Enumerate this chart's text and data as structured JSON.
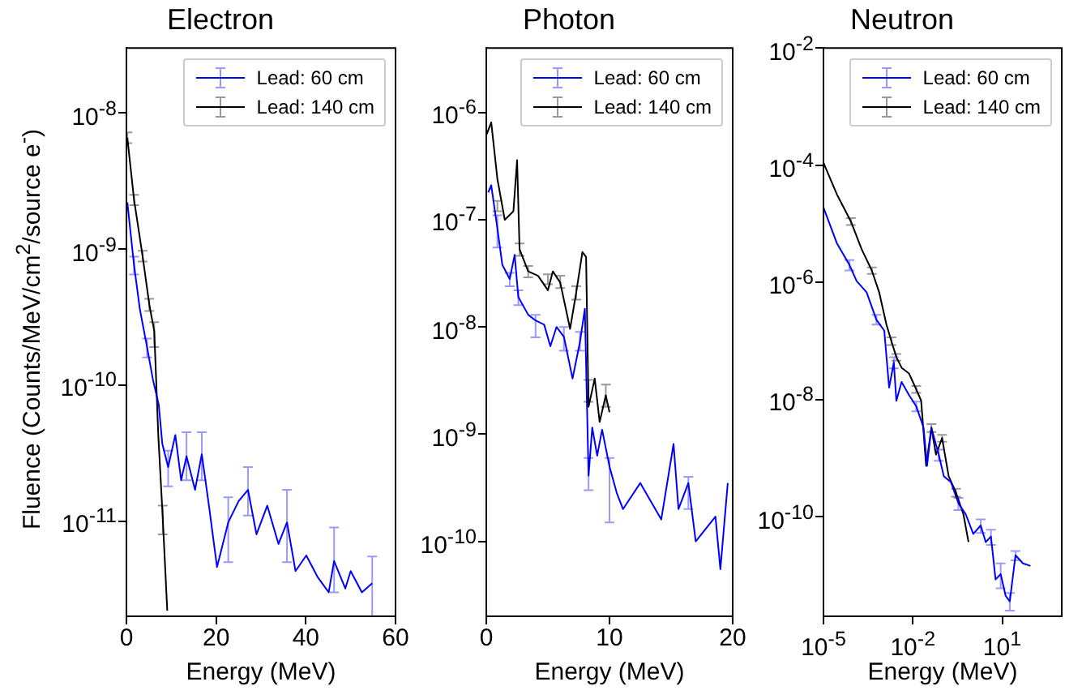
{
  "chart_data": [
    {
      "type": "line",
      "title": "Electron",
      "xlabel": "Energy (MeV)",
      "ylabel": "Fluence (Counts/MeV/cm$^{2}$/source e$^{-}$)",
      "log": "y",
      "grid": false,
      "legend": "top right",
      "xlim": [
        0,
        60
      ],
      "xticks": [
        0,
        20,
        40,
        60
      ],
      "ylim": [
        2e-12,
        3e-08
      ],
      "yticks": [
        {
          "value": 1e-11,
          "label": "10$^{-11}$"
        },
        {
          "value": 1e-10,
          "label": "10$^{-10}$"
        },
        {
          "value": 1e-09,
          "label": "10$^{-9}$"
        },
        {
          "value": 1e-08,
          "label": "10$^{-8}$"
        }
      ],
      "series": [
        {
          "name": "Lead: 60 cm",
          "color": "#0000ff",
          "x": [
            0.2,
            1.7,
            3.0,
            4.6,
            5.9,
            7.2,
            8.0,
            9.3,
            10.9,
            12.2,
            13.4,
            15.3,
            16.8,
            18.4,
            20.2,
            22.7,
            25.0,
            27.1,
            29.0,
            31.4,
            33.9,
            35.8,
            37.7,
            38.3,
            40.1,
            42.6,
            45.1,
            46.3,
            48.8,
            50.0,
            52.5,
            54.8
          ],
          "values": [
            2.2e-09,
            7.6e-10,
            3.6e-10,
            1.9e-10,
            1.1e-10,
            7.2e-11,
            3.7e-11,
            2.5e-11,
            4.3e-11,
            2e-11,
            3e-11,
            1.7e-11,
            3.1e-11,
            1.3e-11,
            4.6e-12,
            9.8e-12,
            1.4e-11,
            1.7e-11,
            8e-12,
            1.3e-11,
            6.8e-12,
            9.8e-12,
            4.3e-12,
            null,
            5.6e-12,
            3.9e-12,
            3e-12,
            5.1e-12,
            3.2e-12,
            4.3e-12,
            3e-12,
            3.5e-12
          ],
          "errors": [
            null,
            [
              6.5e-10,
              8.8e-10
            ],
            null,
            [
              1.6e-10,
              2.2e-10
            ],
            null,
            null,
            null,
            [
              1.8e-11,
              3.3e-11
            ],
            null,
            null,
            [
              2e-11,
              4.5e-11
            ],
            null,
            [
              2e-11,
              4.5e-11
            ],
            null,
            null,
            [
              5e-12,
              1.5e-11
            ],
            null,
            [
              1.1e-11,
              2.5e-11
            ],
            null,
            null,
            null,
            [
              5e-12,
              1.7e-11
            ],
            null,
            null,
            null,
            null,
            null,
            [
              3e-12,
              9e-12
            ],
            null,
            null,
            null,
            [
              2e-12,
              5.5e-12
            ]
          ]
        },
        {
          "name": "Lead: 140 cm",
          "color": "#000000",
          "x": [
            0.2,
            1.7,
            3.6,
            5.1,
            6.2,
            7.1,
            8.1,
            9.1
          ],
          "values": [
            6.6e-09,
            2.3e-09,
            8.9e-10,
            3.9e-10,
            2.5e-10,
            4.3e-11,
            1.05e-11,
            2.2e-12
          ],
          "errors": [
            [
              6e-09,
              7.2e-09
            ],
            [
              2.1e-09,
              2.5e-09
            ],
            [
              8.1e-10,
              9.7e-10
            ],
            [
              3.5e-10,
              4.3e-10
            ],
            [
              1.9e-10,
              2.9e-10
            ],
            null,
            [
              8e-12,
              1.3e-11
            ],
            null
          ]
        }
      ]
    },
    {
      "type": "line",
      "title": "Photon",
      "xlabel": "Energy (MeV)",
      "log": "y",
      "grid": false,
      "legend": "top right",
      "marker": "none",
      "xlim": [
        0,
        20
      ],
      "xticks": [
        0,
        10,
        20
      ],
      "ylim": [
        2e-11,
        4e-06
      ],
      "yticks": [
        {
          "value": 1e-10,
          "label": "10$^{-10}$"
        },
        {
          "value": 1e-09,
          "label": "10$^{-9}$"
        },
        {
          "value": 1e-08,
          "label": "10$^{-8}$"
        },
        {
          "value": 1e-07,
          "label": "10$^{-7}$"
        },
        {
          "value": 1e-06,
          "label": "10$^{-6}$"
        }
      ],
      "series": [
        {
          "name": "Lead: 60 cm",
          "color": "#0000ff",
          "x": [
            0.16,
            0.4,
            0.9,
            1.3,
            1.9,
            2.3,
            2.6,
            3.4,
            4.0,
            4.7,
            5.2,
            5.7,
            6.3,
            7.0,
            7.6,
            8.0,
            8.3,
            8.6,
            9.0,
            9.4,
            10.0,
            10.3,
            10.6,
            11.1,
            11.7,
            12.5,
            13.0,
            14.2,
            14.6,
            15.2,
            15.6,
            16.0,
            16.4,
            17.0,
            17.4,
            18.6,
            19.0,
            19.6
          ],
          "values": [
            1.8e-07,
            2.1e-07,
            8.3e-08,
            3.8e-08,
            2.8e-08,
            4.7e-08,
            1.9e-08,
            1.3e-08,
            1.15e-08,
            1.05e-08,
            6.6e-09,
            1e-08,
            8.1e-09,
            3.3e-09,
            7.2e-09,
            1.48e-08,
            4.1e-10,
            1.15e-09,
            6.3e-10,
            1.1e-09,
            5e-10,
            null,
            2.8e-10,
            2e-10,
            null,
            3.5e-10,
            null,
            1.6e-10,
            null,
            8.1e-10,
            2e-10,
            null,
            3.5e-10,
            1e-10,
            null,
            1.7e-10,
            5.5e-11,
            3.5e-10
          ],
          "errors": [
            null,
            null,
            [
              5.5e-08,
              1.1e-07
            ],
            null,
            [
              2.4e-08,
              3.2e-08
            ],
            null,
            [
              1.6e-08,
              2.2e-08
            ],
            null,
            [
              8e-09,
              1.3e-08
            ],
            null,
            null,
            null,
            [
              6e-09,
              1e-08
            ],
            null,
            [
              6e-09,
              9e-09
            ],
            null,
            [
              3e-10,
              6e-10
            ],
            null,
            null,
            null,
            [
              1.5e-10,
              6e-10
            ],
            null,
            null,
            null,
            null,
            null,
            null,
            null,
            null,
            null,
            null,
            null,
            [
              2e-10,
              4e-10
            ],
            null,
            null,
            null,
            null,
            null
          ]
        },
        {
          "name": "Lead: 140 cm",
          "color": "#000000",
          "x": [
            0.04,
            0.4,
            0.9,
            1.5,
            2.2,
            2.5,
            2.7,
            3.4,
            4.2,
            5.0,
            5.4,
            6.0,
            6.8,
            7.3,
            7.8,
            8.1,
            8.3,
            8.8,
            9.2,
            9.7,
            10.0
          ],
          "values": [
            6.3e-07,
            8.1e-07,
            2.4e-07,
            1e-07,
            1.2e-07,
            3.6e-07,
            5.3e-08,
            3.3e-08,
            3e-08,
            2.2e-08,
            3.3e-08,
            2.6e-08,
            9.6e-09,
            2.1e-08,
            5e-08,
            4.5e-08,
            1.8e-09,
            3.3e-09,
            1.3e-09,
            2.3e-09,
            1.6e-09
          ],
          "errors": [
            null,
            null,
            [
              1.2e-07,
              1.5e-07
            ],
            null,
            null,
            null,
            [
              4.6e-08,
              6e-08
            ],
            [
              2.9e-08,
              3.7e-08
            ],
            null,
            [
              2.5e-08,
              3.1e-08
            ],
            null,
            [
              2.3e-08,
              3e-08
            ],
            null,
            [
              1.8e-08,
              2.4e-08
            ],
            null,
            null,
            [
              2e-09,
              3.2e-09
            ],
            null,
            null,
            [
              1.8e-09,
              2.9e-09
            ],
            null
          ]
        }
      ]
    },
    {
      "type": "line",
      "title": "Neutron",
      "xlabel": "Energy (MeV)",
      "log": "xy",
      "grid": false,
      "legend": "top right",
      "marker": "none",
      "xlim": [
        1e-05,
        1000
      ],
      "xticks": [
        {
          "value": 1e-05,
          "label": "10$^{-5}$"
        },
        {
          "value": 0.01,
          "label": "10$^{-2}$"
        },
        {
          "value": 10,
          "label": "10$^{1}$"
        }
      ],
      "ylim": [
        2e-12,
        0.01
      ],
      "yticks": [
        {
          "value": 1e-10,
          "label": "10$^{-10}$"
        },
        {
          "value": 1e-08,
          "label": "10$^{-8}$"
        },
        {
          "value": 1e-06,
          "label": "10$^{-6}$"
        },
        {
          "value": 0.0001,
          "label": "10$^{-4}$"
        },
        {
          "value": 0.01,
          "label": "10$^{-2}$"
        }
      ],
      "series": [
        {
          "name": "Lead: 60 cm",
          "color": "#0000ff",
          "x": [
            1e-05,
            2.8e-05,
            7.4e-05,
            0.00013,
            0.00028,
            0.0006,
            0.0011,
            0.0016,
            0.0023,
            0.0028,
            0.0042,
            0.0074,
            0.013,
            0.023,
            0.03,
            0.042,
            0.074,
            0.11,
            0.19,
            0.34,
            0.6,
            1.07,
            1.9,
            2.8,
            4.2,
            6,
            8.9,
            13,
            18,
            21,
            28,
            50,
            89
          ],
          "values": [
            1.9e-05,
            4.7e-06,
            2e-06,
            1.05e-06,
            6.8e-07,
            2.3e-07,
            1.5e-07,
            1.6e-08,
            4.3e-08,
            9.5e-09,
            2e-08,
            1.2e-08,
            7.7e-09,
            3.3e-09,
            7.4e-10,
            3.3e-09,
            1.15e-09,
            4.9e-10,
            3.9e-10,
            1.7e-10,
            1.1e-10,
            5.1e-11,
            7.1e-11,
            3.7e-11,
            4.6e-11,
            8.5e-12,
            1.05e-11,
            4.5e-12,
            3.6e-12,
            null,
            2.2e-11,
            1.6e-11,
            1.45e-11
          ],
          "errors": [
            null,
            null,
            [
              1.6e-06,
              2.4e-06
            ],
            null,
            null,
            [
              1.9e-07,
              2.8e-07
            ],
            null,
            null,
            [
              3.4e-08,
              5.3e-08
            ],
            null,
            null,
            null,
            [
              6.3e-09,
              9.2e-09
            ],
            null,
            null,
            null,
            [
              9e-10,
              1.4e-09
            ],
            null,
            null,
            [
              1.3e-10,
              2.1e-10
            ],
            null,
            null,
            [
              5.3e-11,
              9e-11
            ],
            null,
            [
              3.3e-11,
              6e-11
            ],
            null,
            [
              6e-12,
              1.6e-11
            ],
            null,
            [
              2.5e-12,
              5e-12
            ],
            null,
            [
              1.8e-11,
              2.6e-11
            ],
            null,
            null
          ]
        },
        {
          "name": "Lead: 140 cm",
          "color": "#000000",
          "x": [
            1e-05,
            2.8e-05,
            8.3e-05,
            0.00019,
            0.00042,
            0.00074,
            0.0013,
            0.0019,
            0.0028,
            0.0042,
            0.0074,
            0.013,
            0.019,
            0.028,
            0.042,
            0.06,
            0.096,
            0.16,
            0.28,
            0.5,
            0.74
          ],
          "values": [
            0.00011,
            3.2e-05,
            1.1e-05,
            3.7e-06,
            1.6e-06,
            6.8e-07,
            1.9e-07,
            1e-07,
            5.3e-08,
            3.5e-08,
            2.8e-08,
            1.5e-08,
            9.6e-09,
            7.4e-10,
            3.3e-09,
            1.15e-09,
            2.2e-09,
            4.9e-10,
            2.6e-10,
            1.1e-10,
            3.7e-11
          ],
          "errors": [
            null,
            null,
            [
              9.5e-06,
              1.25e-05
            ],
            null,
            [
              1.4e-06,
              1.8e-06
            ],
            null,
            null,
            [
              8.5e-08,
              1.15e-07
            ],
            [
              4.6e-08,
              6e-08
            ],
            null,
            null,
            [
              1.3e-08,
              1.7e-08
            ],
            null,
            null,
            [
              2.8e-09,
              3.8e-09
            ],
            null,
            [
              1.9e-09,
              2.5e-09
            ],
            null,
            [
              2.2e-10,
              3e-10
            ],
            null,
            null
          ]
        }
      ]
    }
  ]
}
